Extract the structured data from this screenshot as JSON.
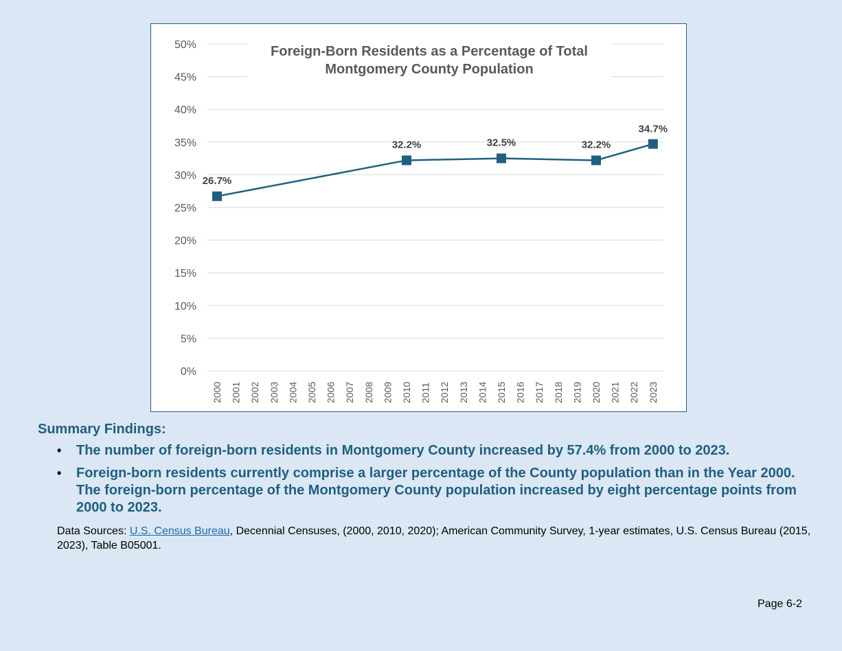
{
  "chart_data": {
    "type": "line",
    "title": "Foreign-Born Residents as a Percentage of Total Montgomery County Population",
    "title_lines": [
      "Foreign-Born Residents as a Percentage of Total",
      "Montgomery County Population"
    ],
    "xlabel": "",
    "ylabel": "",
    "categories": [
      "2000",
      "2001",
      "2002",
      "2003",
      "2004",
      "2005",
      "2006",
      "2007",
      "2008",
      "2009",
      "2010",
      "2011",
      "2012",
      "2013",
      "2014",
      "2015",
      "2016",
      "2017",
      "2018",
      "2019",
      "2020",
      "2021",
      "2022",
      "2023"
    ],
    "series": [
      {
        "points": [
          {
            "year": "2000",
            "value": 26.7,
            "label": "26.7%"
          },
          {
            "year": "2010",
            "value": 32.2,
            "label": "32.2%"
          },
          {
            "year": "2015",
            "value": 32.5,
            "label": "32.5%"
          },
          {
            "year": "2020",
            "value": 32.2,
            "label": "32.2%"
          },
          {
            "year": "2023",
            "value": 34.7,
            "label": "34.7%"
          }
        ]
      }
    ],
    "ylim": [
      0,
      50
    ],
    "yticks": [
      "0%",
      "5%",
      "10%",
      "15%",
      "20%",
      "25%",
      "30%",
      "35%",
      "40%",
      "45%",
      "50%"
    ],
    "grid": true,
    "line_color": "#1f5f80"
  },
  "summary": {
    "heading": "Summary Findings:",
    "findings": [
      "The number of foreign-born residents in Montgomery County increased by 57.4% from 2000 to 2023.",
      "Foreign-born residents currently comprise a larger percentage of the County population than in the Year 2000. The foreign-born percentage of the Montgomery County population increased by eight percentage points from 2000 to 2023."
    ],
    "bullet": "•"
  },
  "sources": {
    "prefix": "Data Sources: ",
    "link_text": "U.S. Census Bureau",
    "suffix": ", Decennial Censuses, (2000, 2010, 2020); American Community Survey, 1-year estimates, U.S. Census Bureau (2015, 2023), Table B05001."
  },
  "page": {
    "number": "Page 6-2"
  }
}
